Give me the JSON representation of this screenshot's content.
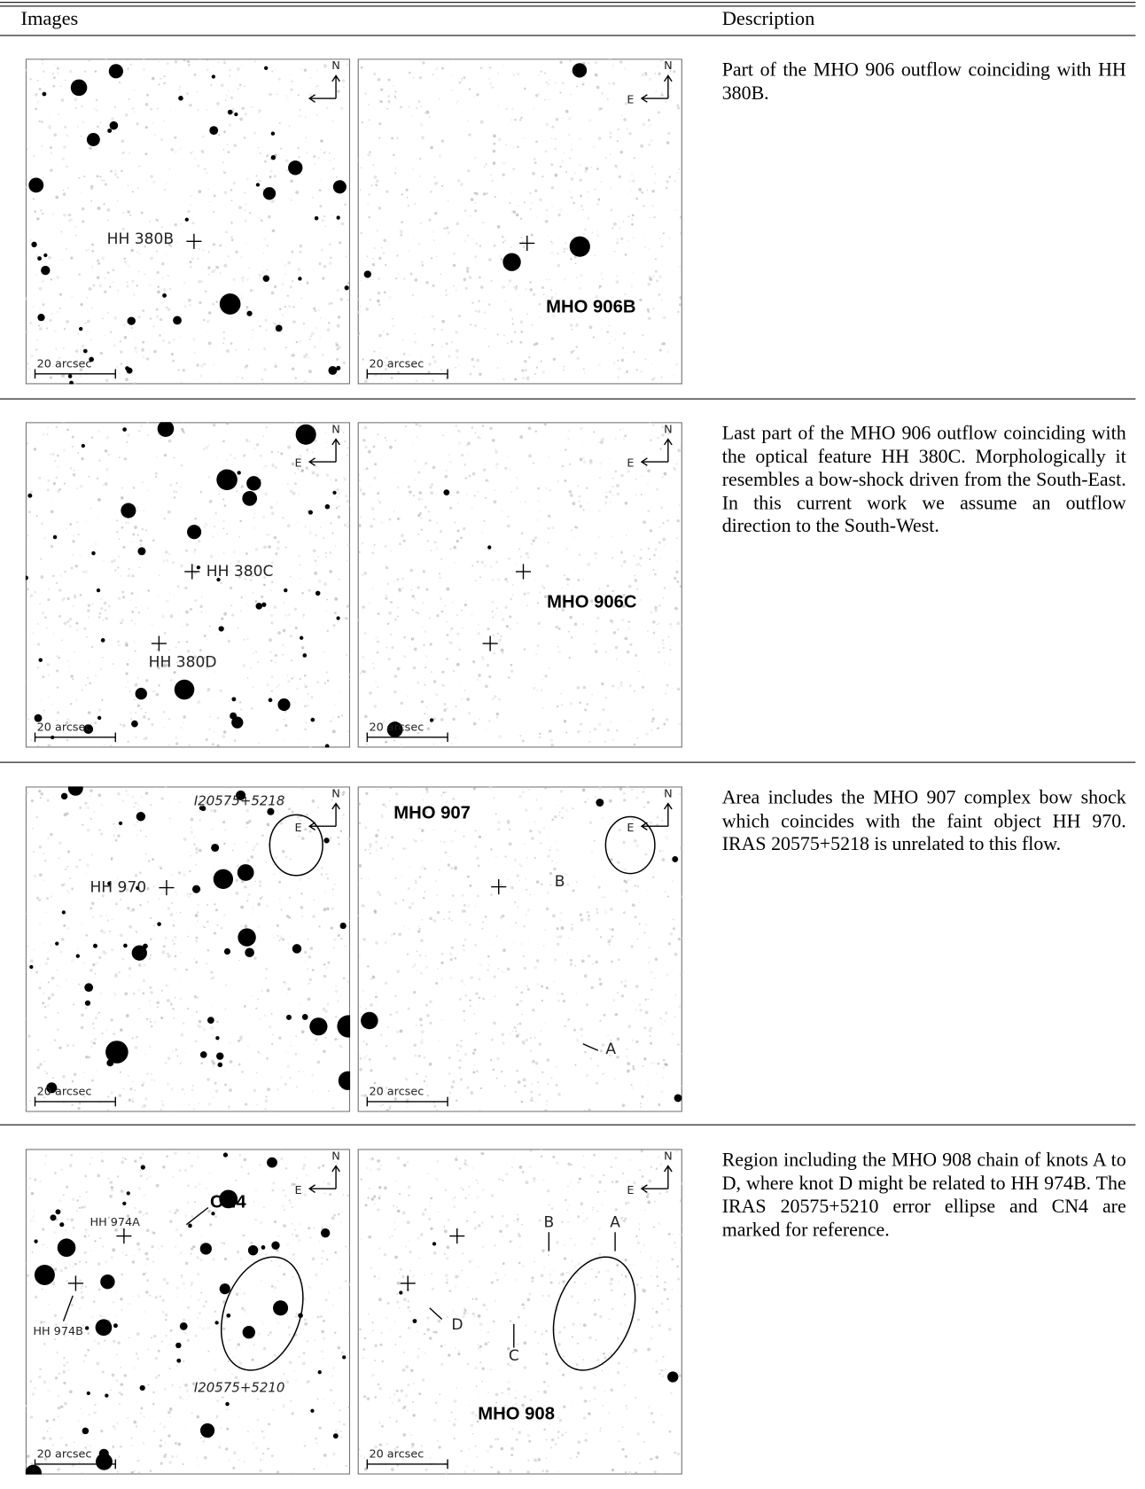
{
  "table": {
    "header": [
      "Images",
      "Description"
    ],
    "rows": [
      {
        "panels": [
          [
            "N",
            "HH 380B",
            "20 arcsec"
          ],
          [
            "N",
            "E",
            "MHO 906B",
            "20 arcsec"
          ]
        ],
        "description": "Part of the MHO 906 outflow coinciding with HH 380B."
      },
      {
        "panels": [
          [
            "N",
            "E",
            "HH 380C",
            "HH 380D",
            "20 arcsec"
          ],
          [
            "N",
            "E",
            "MHO 906C",
            "20 arcsec"
          ]
        ],
        "description": "Last part of the MHO 906 outflow coinciding with the optical feature HH 380C. Morphologically it resembles a bow-shock driven from the South-East. In this current work we assume an outflow direction to the South-West."
      },
      {
        "panels": [
          [
            "N",
            "E",
            "I20575+5218",
            "HH 970",
            "20 arcsec"
          ],
          [
            "MHO 907",
            "N",
            "E",
            "B",
            "A",
            "20 arcsec"
          ]
        ],
        "description": "Area includes the MHO 907 complex bow shock which coincides with the faint object HH 970. IRAS 20575+5218 is unrelated to this flow."
      },
      {
        "panels": [
          [
            "N",
            "E",
            "CN4",
            "HH 974A",
            "HH 974B",
            "I20575+5210",
            "20 arcsec"
          ],
          [
            "N",
            "E",
            "B",
            "A",
            "D",
            "C",
            "MHO 908",
            "20 arcsec"
          ]
        ],
        "description": "Region including the MHO 908 chain of knots A to D, where knot D might be related to HH 974B. The IRAS 20575+5210 error ellipse and CN4 are marked for reference."
      }
    ]
  }
}
